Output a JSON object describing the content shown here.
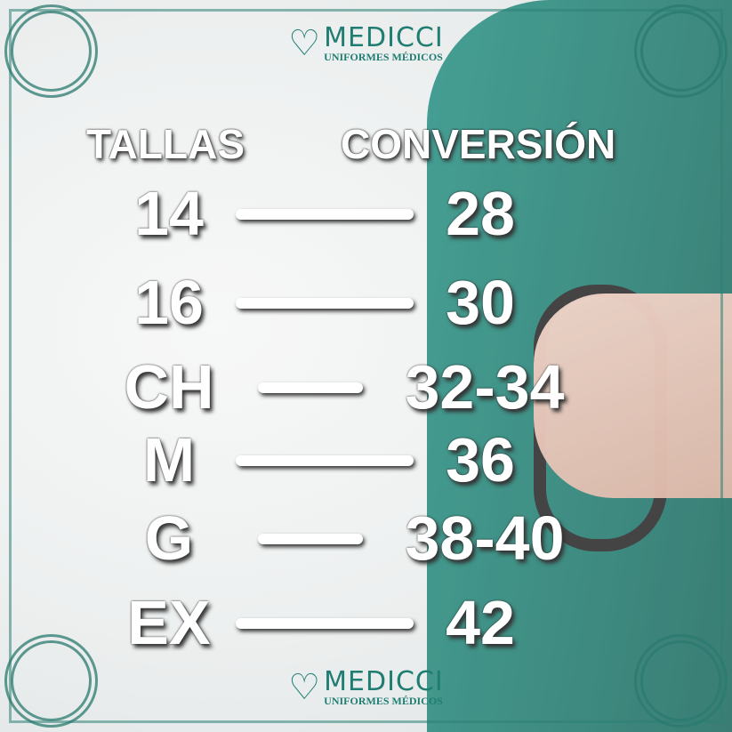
{
  "brand": {
    "name": "MEDICCI",
    "tagline": "UNIFORMES MÉDICOS",
    "color": "#1f7d72",
    "icon": "heart-stethoscope-icon"
  },
  "headers": {
    "left": "TALLAS",
    "right": "CONVERSIÓN"
  },
  "rows": [
    {
      "talla": "14",
      "conversion": "28"
    },
    {
      "talla": "16",
      "conversion": "30"
    },
    {
      "talla": "CH",
      "conversion": "32-34"
    },
    {
      "talla": "M",
      "conversion": "36"
    },
    {
      "talla": "G",
      "conversion": "38-40"
    },
    {
      "talla": "EX",
      "conversion": "42"
    }
  ]
}
